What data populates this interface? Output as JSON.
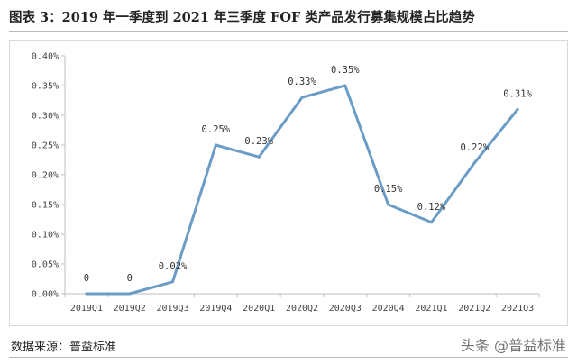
{
  "title": "图表 3：2019 年一季度到 2021 年三季度 FOF 类产品发行募集规模占比趋势",
  "source": "数据来源：普益标准",
  "watermark": "头条 @普益标准",
  "chart_data": {
    "type": "line",
    "categories": [
      "2019Q1",
      "2019Q2",
      "2019Q3",
      "2019Q4",
      "2020Q1",
      "2020Q2",
      "2020Q3",
      "2020Q4",
      "2021Q1",
      "2021Q2",
      "2021Q3"
    ],
    "values": [
      0,
      0,
      0.02,
      0.25,
      0.23,
      0.33,
      0.35,
      0.15,
      0.12,
      0.22,
      0.31
    ],
    "data_labels": [
      "0",
      "0",
      "0.02%",
      "0.25%",
      "0.23%",
      "0.33%",
      "0.35%",
      "0.15%",
      "0.12%",
      "0.22%",
      "0.31%"
    ],
    "yticks": [
      "0.00%",
      "0.05%",
      "0.10%",
      "0.15%",
      "0.20%",
      "0.25%",
      "0.30%",
      "0.35%",
      "0.40%"
    ],
    "ylim": [
      0,
      0.4
    ],
    "line_color": "#6a9cc5",
    "grid": false,
    "legend": "none"
  }
}
